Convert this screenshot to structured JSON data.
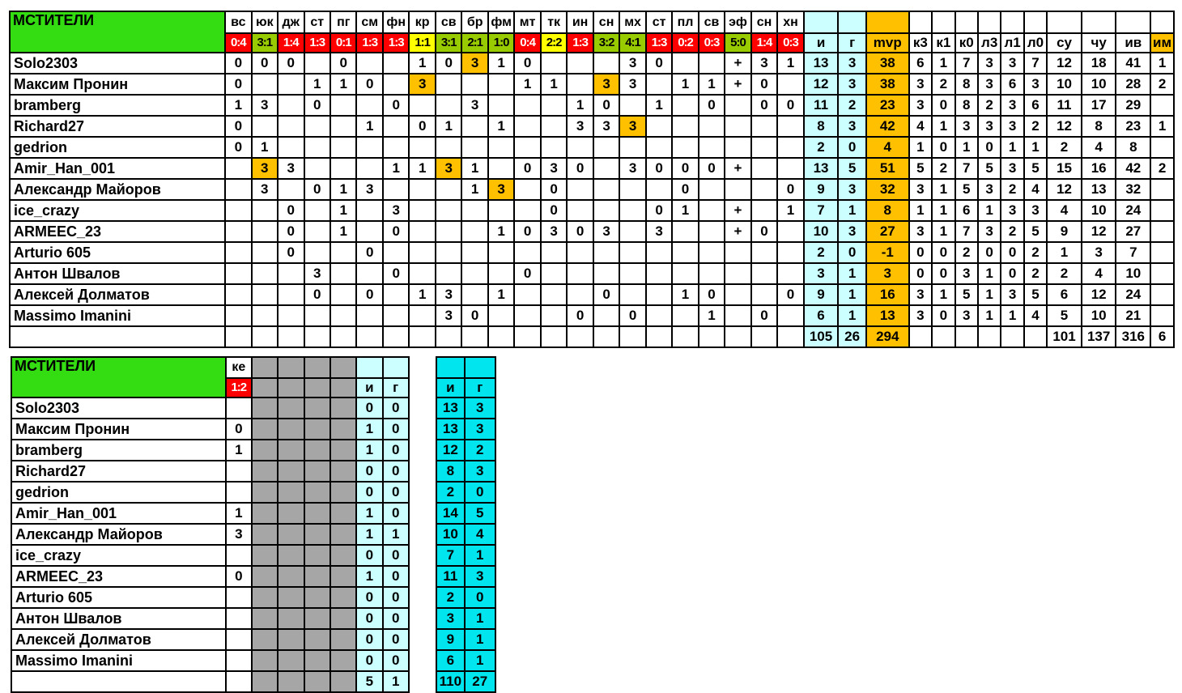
{
  "top_table": {
    "title": "МСТИТЕЛИ",
    "opponents": [
      {
        "code": "вс",
        "score": "0:4",
        "result": "loss"
      },
      {
        "code": "юк",
        "score": "3:1",
        "result": "win"
      },
      {
        "code": "дж",
        "score": "1:4",
        "result": "loss"
      },
      {
        "code": "ст",
        "score": "1:3",
        "result": "loss"
      },
      {
        "code": "пг",
        "score": "0:1",
        "result": "loss"
      },
      {
        "code": "см",
        "score": "1:3",
        "result": "loss"
      },
      {
        "code": "фн",
        "score": "1:3",
        "result": "loss"
      },
      {
        "code": "кр",
        "score": "1:1",
        "result": "draw"
      },
      {
        "code": "св",
        "score": "3:1",
        "result": "win"
      },
      {
        "code": "бр",
        "score": "2:1",
        "result": "win"
      },
      {
        "code": "фм",
        "score": "1:0",
        "result": "win"
      },
      {
        "code": "мт",
        "score": "0:4",
        "result": "loss"
      },
      {
        "code": "тк",
        "score": "2:2",
        "result": "draw"
      },
      {
        "code": "ин",
        "score": "1:3",
        "result": "loss"
      },
      {
        "code": "сн",
        "score": "3:2",
        "result": "win"
      },
      {
        "code": "мх",
        "score": "4:1",
        "result": "win"
      },
      {
        "code": "ст",
        "score": "1:3",
        "result": "loss"
      },
      {
        "code": "пл",
        "score": "0:2",
        "result": "loss"
      },
      {
        "code": "св",
        "score": "0:3",
        "result": "loss"
      },
      {
        "code": "эф",
        "score": "5:0",
        "result": "win"
      },
      {
        "code": "сн",
        "score": "1:4",
        "result": "loss"
      },
      {
        "code": "хн",
        "score": "0:3",
        "result": "loss"
      }
    ],
    "stat_headers": [
      "и",
      "г",
      "mvp",
      "к3",
      "к1",
      "к0",
      "л3",
      "л1",
      "л0",
      "су",
      "чу",
      "ив",
      "им"
    ],
    "rows": [
      {
        "name": "Solo2303",
        "games": [
          "0",
          "0",
          "0",
          "",
          "0",
          "",
          "",
          "1",
          "0",
          "3",
          "1",
          "0",
          "",
          "",
          "",
          "3",
          "0",
          "",
          "",
          "+",
          "3",
          "1"
        ],
        "stats": [
          "13",
          "3",
          "38",
          "6",
          "1",
          "7",
          "3",
          "3",
          "7",
          "12",
          "18",
          "41",
          "1"
        ]
      },
      {
        "name": "Максим Пронин",
        "games": [
          "0",
          "",
          "",
          "1",
          "1",
          "0",
          "",
          "3",
          "",
          "",
          "",
          "1",
          "1",
          "",
          "3",
          "3",
          "",
          "1",
          "1",
          "+",
          "0",
          ""
        ],
        "stats": [
          "12",
          "3",
          "38",
          "3",
          "2",
          "8",
          "3",
          "6",
          "3",
          "10",
          "10",
          "28",
          "2"
        ]
      },
      {
        "name": "bramberg",
        "games": [
          "1",
          "3",
          "",
          "0",
          "",
          "",
          "0",
          "",
          "",
          "3",
          "",
          "",
          "",
          "1",
          "0",
          "",
          "1",
          "",
          "0",
          "",
          "0",
          "0"
        ],
        "stats": [
          "11",
          "2",
          "23",
          "3",
          "0",
          "8",
          "2",
          "3",
          "6",
          "11",
          "17",
          "29",
          ""
        ]
      },
      {
        "name": "Richard27",
        "games": [
          "0",
          "",
          "",
          "",
          "",
          "1",
          "",
          "0",
          "1",
          "",
          "1",
          "",
          "",
          "3",
          "3",
          "3",
          "",
          "",
          "",
          "",
          "",
          ""
        ],
        "stats": [
          "8",
          "3",
          "42",
          "4",
          "1",
          "3",
          "3",
          "3",
          "2",
          "12",
          "8",
          "23",
          "1"
        ]
      },
      {
        "name": "gedrion",
        "games": [
          "0",
          "1",
          "",
          "",
          "",
          "",
          "",
          "",
          "",
          "",
          "",
          "",
          "",
          "",
          "",
          "",
          "",
          "",
          "",
          "",
          "",
          ""
        ],
        "stats": [
          "2",
          "0",
          "4",
          "1",
          "0",
          "1",
          "0",
          "1",
          "1",
          "2",
          "4",
          "8",
          ""
        ]
      },
      {
        "name": "Amir_Han_001",
        "games": [
          "",
          "3",
          "3",
          "",
          "",
          "",
          "1",
          "1",
          "3",
          "1",
          "",
          "0",
          "3",
          "0",
          "",
          "3",
          "0",
          "0",
          "0",
          "+",
          "",
          ""
        ],
        "stats": [
          "13",
          "5",
          "51",
          "5",
          "2",
          "7",
          "5",
          "3",
          "5",
          "15",
          "16",
          "42",
          "2"
        ]
      },
      {
        "name": "Александр Майоров",
        "games": [
          "",
          "3",
          "",
          "0",
          "1",
          "3",
          "",
          "",
          "",
          "1",
          "3",
          "",
          "0",
          "",
          "",
          "",
          "",
          "0",
          "",
          "",
          "",
          "0"
        ],
        "stats": [
          "9",
          "3",
          "32",
          "3",
          "1",
          "5",
          "3",
          "2",
          "4",
          "12",
          "13",
          "32",
          ""
        ]
      },
      {
        "name": "ice_crazy",
        "games": [
          "",
          "",
          "0",
          "",
          "1",
          "",
          "3",
          "",
          "",
          "",
          "",
          "",
          "0",
          "",
          "",
          "",
          "0",
          "1",
          "",
          "+",
          "",
          "1"
        ],
        "stats": [
          "7",
          "1",
          "8",
          "1",
          "1",
          "6",
          "1",
          "3",
          "3",
          "4",
          "10",
          "24",
          ""
        ]
      },
      {
        "name": "ARMEEC_23",
        "games": [
          "",
          "",
          "0",
          "",
          "1",
          "",
          "0",
          "",
          "",
          "",
          "1",
          "0",
          "3",
          "0",
          "3",
          "",
          "3",
          "",
          "",
          "+",
          "0",
          ""
        ],
        "stats": [
          "10",
          "3",
          "27",
          "3",
          "1",
          "7",
          "3",
          "2",
          "5",
          "9",
          "12",
          "27",
          ""
        ]
      },
      {
        "name": "Arturio 605",
        "games": [
          "",
          "",
          "0",
          "",
          "",
          "0",
          "",
          "",
          "",
          "",
          "",
          "",
          "",
          "",
          "",
          "",
          "",
          "",
          "",
          "",
          "",
          ""
        ],
        "stats": [
          "2",
          "0",
          "-1",
          "0",
          "0",
          "2",
          "0",
          "0",
          "2",
          "1",
          "3",
          "7",
          ""
        ]
      },
      {
        "name": "Антон Швалов",
        "games": [
          "",
          "",
          "",
          "3",
          "",
          "",
          "0",
          "",
          "",
          "",
          "",
          "0",
          "",
          "",
          "",
          "",
          "",
          "",
          "",
          "",
          "",
          ""
        ],
        "stats": [
          "3",
          "1",
          "3",
          "0",
          "0",
          "3",
          "1",
          "0",
          "2",
          "2",
          "4",
          "10",
          ""
        ]
      },
      {
        "name": "Алексей Долматов",
        "games": [
          "",
          "",
          "",
          "0",
          "",
          "0",
          "",
          "1",
          "3",
          "",
          "1",
          "",
          "",
          "",
          "0",
          "",
          "",
          "1",
          "0",
          "",
          "",
          "0"
        ],
        "stats": [
          "9",
          "1",
          "16",
          "3",
          "1",
          "5",
          "1",
          "3",
          "5",
          "6",
          "12",
          "24",
          ""
        ]
      },
      {
        "name": "Massimo Imanini",
        "games": [
          "",
          "",
          "",
          "",
          "",
          "",
          "",
          "",
          "3",
          "0",
          "",
          "",
          "",
          "0",
          "",
          "0",
          "",
          "",
          "1",
          "",
          "0",
          ""
        ],
        "stats": [
          "6",
          "1",
          "13",
          "3",
          "0",
          "3",
          "1",
          "1",
          "4",
          "5",
          "10",
          "21",
          ""
        ]
      }
    ],
    "totals": [
      "105",
      "26",
      "294",
      "",
      "",
      "",
      "",
      "",
      "",
      "101",
      "137",
      "316",
      "6"
    ]
  },
  "bottom_table": {
    "title": "МСТИТЕЛИ",
    "opponent_code": "ке",
    "opponent_score": "1:2",
    "sub_headers": [
      "и",
      "г"
    ],
    "cumulative_headers": [
      "и",
      "г"
    ],
    "rows": [
      {
        "name": "Solo2303",
        "game": "",
        "i": "0",
        "g": "0",
        "ti": "13",
        "tg": "3"
      },
      {
        "name": "Максим Пронин",
        "game": "0",
        "i": "1",
        "g": "0",
        "ti": "13",
        "tg": "3"
      },
      {
        "name": "bramberg",
        "game": "1",
        "i": "1",
        "g": "0",
        "ti": "12",
        "tg": "2"
      },
      {
        "name": "Richard27",
        "game": "",
        "i": "0",
        "g": "0",
        "ti": "8",
        "tg": "3"
      },
      {
        "name": "gedrion",
        "game": "",
        "i": "0",
        "g": "0",
        "ti": "2",
        "tg": "0"
      },
      {
        "name": "Amir_Han_001",
        "game": "1",
        "i": "1",
        "g": "0",
        "ti": "14",
        "tg": "5"
      },
      {
        "name": "Александр Майоров",
        "game": "3",
        "i": "1",
        "g": "1",
        "ti": "10",
        "tg": "4"
      },
      {
        "name": "ice_crazy",
        "game": "",
        "i": "0",
        "g": "0",
        "ti": "7",
        "tg": "1"
      },
      {
        "name": "ARMEEC_23",
        "game": "0",
        "i": "1",
        "g": "0",
        "ti": "11",
        "tg": "3"
      },
      {
        "name": "Arturio 605",
        "game": "",
        "i": "0",
        "g": "0",
        "ti": "2",
        "tg": "0"
      },
      {
        "name": "Антон Швалов",
        "game": "",
        "i": "0",
        "g": "0",
        "ti": "3",
        "tg": "1"
      },
      {
        "name": "Алексей Долматов",
        "game": "",
        "i": "0",
        "g": "0",
        "ti": "9",
        "tg": "1"
      },
      {
        "name": "Massimo Imanini",
        "game": "",
        "i": "0",
        "g": "0",
        "ti": "6",
        "tg": "1"
      }
    ],
    "totals": {
      "i": "5",
      "g": "1",
      "ti": "110",
      "tg": "27"
    }
  },
  "colors": {
    "title_green": "#33dd11",
    "win_green": "#99cc00",
    "loss_red": "#ff0000",
    "draw_yellow": "#ffff00",
    "mvp_gold": "#ffc000",
    "stats_cyan": "#ccffff",
    "cumulative_teal": "#00e5ee",
    "empty_gray": "#a6a6a6"
  }
}
